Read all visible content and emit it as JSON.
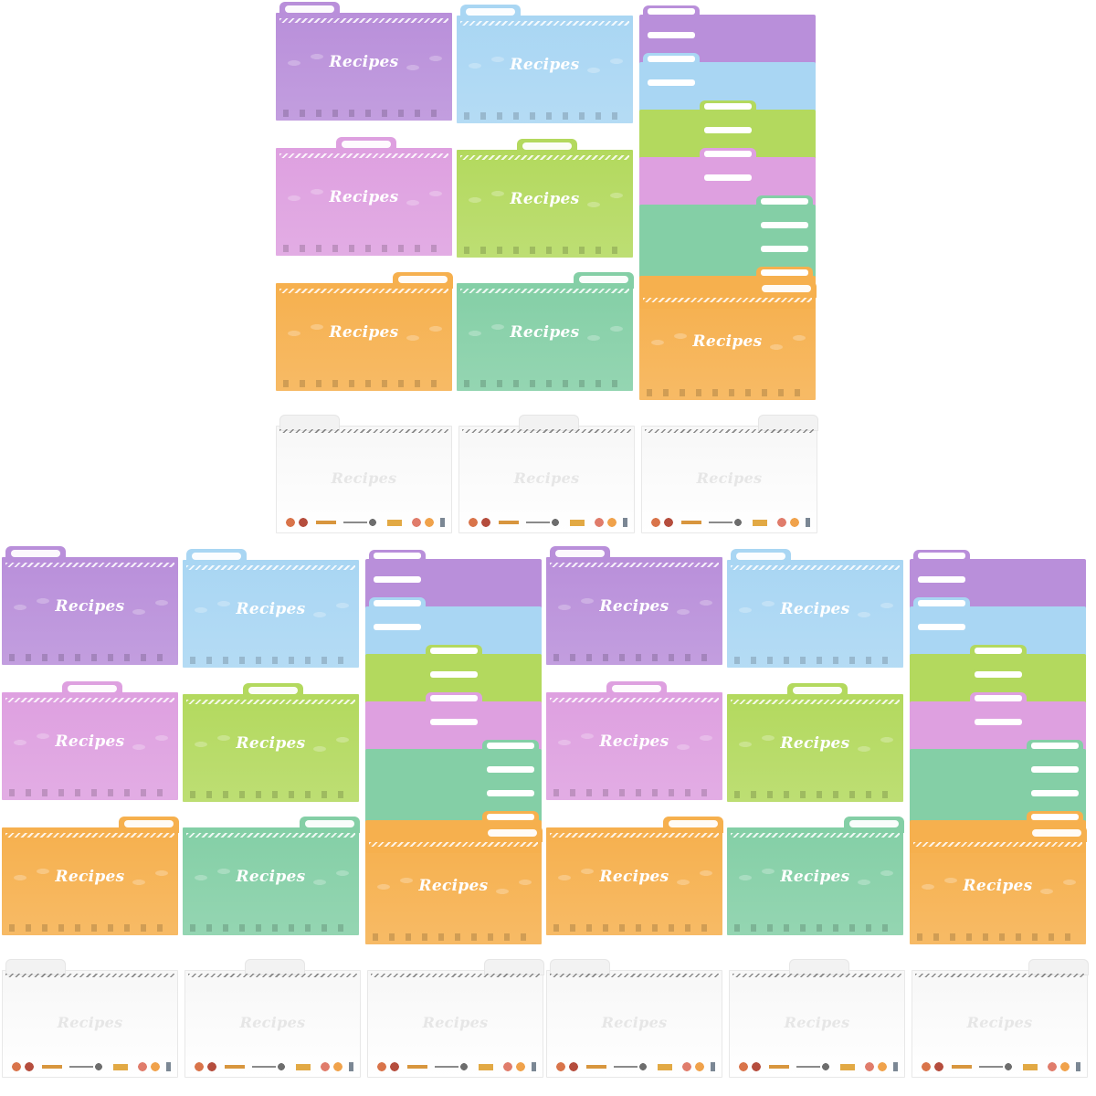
{
  "title_text": "Recipes",
  "colors": {
    "purple": "#b98fda",
    "blue": "#a9d6f3",
    "pink": "#dea0e0",
    "green": "#b3d95e",
    "orange": "#f6b04e",
    "teal": "#84cfa6",
    "white": "#f8f8f8"
  },
  "groups": [
    {
      "name": "group-top"
    },
    {
      "name": "group-bottom-left"
    },
    {
      "name": "group-bottom-right"
    }
  ]
}
